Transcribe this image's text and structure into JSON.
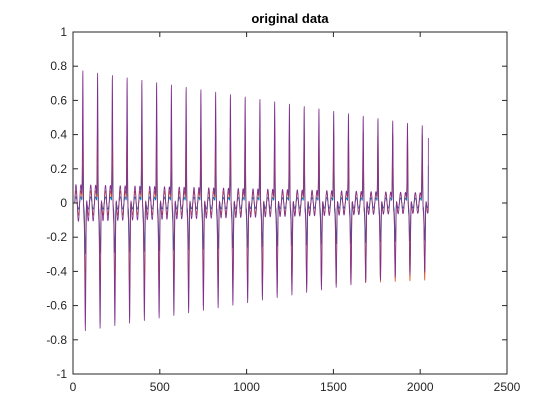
{
  "chart_data": {
    "type": "line",
    "title": "original data",
    "xlabel": "",
    "ylabel": "",
    "xlim": [
      0,
      2500
    ],
    "ylim": [
      -1,
      1
    ],
    "x_ticks": [
      0,
      500,
      1000,
      1500,
      2000,
      2500
    ],
    "y_ticks": [
      -1,
      -0.8,
      -0.6,
      -0.4,
      -0.2,
      0,
      0.2,
      0.4,
      0.6,
      0.8,
      1
    ],
    "x_tick_labels": [
      "0",
      "500",
      "1000",
      "1500",
      "2000",
      "2500"
    ],
    "y_tick_labels": [
      "-1",
      "-0.8",
      "-0.6",
      "-0.4",
      "-0.2",
      "0",
      "0.2",
      "0.4",
      "0.6",
      "0.8",
      "1"
    ],
    "grid": false,
    "legend": "none",
    "series": [
      {
        "color": "#0072BD",
        "n_points": 2048,
        "cycle_length": 85,
        "first_cycle_start": 10,
        "peak_max_start": 0.25,
        "peak_max_end": 0.22,
        "peak_min_start": -0.33,
        "peak_min_end": -0.24,
        "end_value": 0.22
      },
      {
        "color": "#D95319",
        "n_points": 2048,
        "cycle_length": 85,
        "first_cycle_start": 10,
        "peak_max_start": 0.55,
        "peak_max_end": 0.45,
        "peak_min_start": -0.6,
        "peak_min_end": -0.5,
        "end_value": 0.0
      },
      {
        "color": "#7E2F8E",
        "n_points": 2048,
        "cycle_length": 85,
        "first_cycle_start": 10,
        "peak_max_start": 0.88,
        "peak_max_end": 0.5,
        "peak_min_start": -0.85,
        "peak_min_end": -0.45,
        "end_value": 0.38
      }
    ]
  }
}
